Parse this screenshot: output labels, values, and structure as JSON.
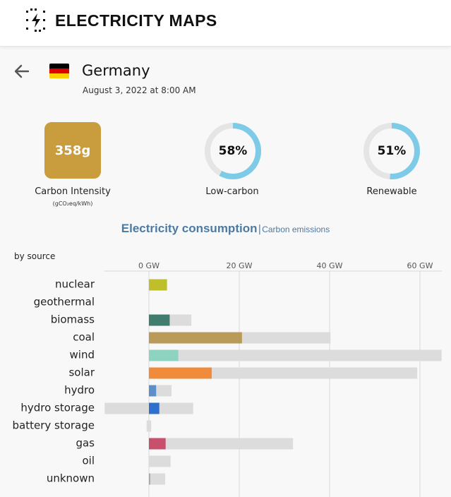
{
  "header": {
    "title": "ELECTRICITY MAPS",
    "logo_icon": "lightning-bolt-icon"
  },
  "zone": {
    "country": "Germany",
    "datetime": "August 3, 2022 at 8:00 AM",
    "flag_colors": [
      "#000000",
      "#dd0000",
      "#ffce00"
    ]
  },
  "metrics": {
    "carbon_intensity": {
      "value": "358g",
      "label": "Carbon Intensity",
      "unit": "(gCO₂eq/kWh)",
      "color": "#c99c3e"
    },
    "low_carbon": {
      "value": "58%",
      "label": "Low-carbon",
      "fraction": 0.58
    },
    "renewable": {
      "value": "51%",
      "label": "Renewable",
      "fraction": 0.51
    },
    "donut_color": "#7ecbe8",
    "donut_track": "#e5e5e5"
  },
  "tabs": {
    "active": "Electricity consumption",
    "separator": "|",
    "inactive": "Carbon emissions"
  },
  "chart_data": {
    "type": "bar",
    "title": "by source",
    "xlabel": "",
    "ylabel": "",
    "unit": "GW",
    "xlim": [
      -10,
      64
    ],
    "ticks": [
      0,
      20,
      40,
      60
    ],
    "tick_labels": [
      "0 GW",
      "20 GW",
      "40 GW",
      "60 GW"
    ],
    "categories": [
      "nuclear",
      "geothermal",
      "biomass",
      "coal",
      "wind",
      "solar",
      "hydro",
      "hydro storage",
      "battery storage",
      "gas",
      "oil",
      "unknown"
    ],
    "series": [
      {
        "name": "production",
        "values": [
          4,
          0,
          4.6,
          20.6,
          6.5,
          13.9,
          1.6,
          2.3,
          0,
          3.7,
          0,
          0.3
        ]
      },
      {
        "name": "capacity",
        "values": [
          4,
          0,
          9.4,
          40.2,
          64.8,
          59.4,
          5,
          9.8,
          0.5,
          31.9,
          4.8,
          3.6
        ]
      },
      {
        "name": "capacity_negative",
        "values": [
          0,
          0,
          0,
          0,
          0,
          0,
          0,
          9.8,
          0.5,
          0,
          0,
          0
        ]
      }
    ],
    "colors": [
      "#bfbf2a",
      "#c0504d",
      "#417d6e",
      "#b99a58",
      "#8dd3c0",
      "#f08c39",
      "#5e8fc9",
      "#2f6fcd",
      "#7a7a7a",
      "#c8506c",
      "#a0a0a0",
      "#a8a8a8"
    ]
  }
}
